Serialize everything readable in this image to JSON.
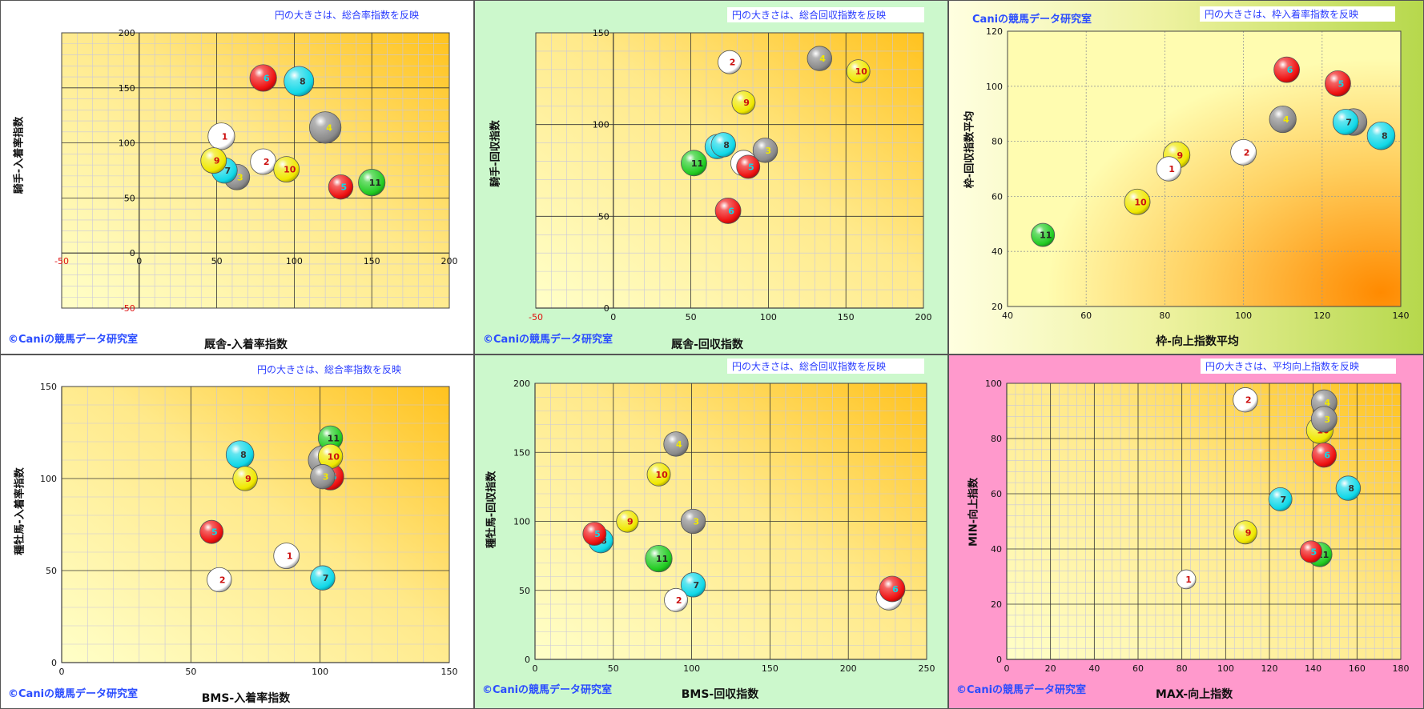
{
  "chart_data": [
    {
      "id": "p1",
      "type": "scatter",
      "note": "円の大きさは、総合率指数を反映",
      "copyright": "©Caniの競馬データ研究室",
      "xlabel": "厩舎-入着率指数",
      "ylabel": "騎手-入着率指数",
      "xlim": [
        -50,
        200
      ],
      "ylim": [
        -50,
        200
      ],
      "xticks": [
        -50,
        0,
        50,
        100,
        150,
        200
      ],
      "yticks": [
        -50,
        0,
        50,
        100,
        150,
        200
      ],
      "grid": true,
      "points": [
        {
          "label": "1",
          "x": 53,
          "y": 106,
          "size": 1.1,
          "color": "#ffffff"
        },
        {
          "label": "2",
          "x": 80,
          "y": 83,
          "size": 1.0,
          "color": "#ffffff"
        },
        {
          "label": "3",
          "x": 63,
          "y": 69,
          "size": 1.0,
          "color": "#8a8a8a"
        },
        {
          "label": "4",
          "x": 120,
          "y": 114,
          "size": 1.6,
          "color": "#8a8a8a"
        },
        {
          "label": "5",
          "x": 130,
          "y": 60,
          "size": 0.9,
          "color": "#ee1010"
        },
        {
          "label": "6",
          "x": 80,
          "y": 159,
          "size": 1.1,
          "color": "#ee1010"
        },
        {
          "label": "7",
          "x": 55,
          "y": 75,
          "size": 1.0,
          "color": "#10d8e8"
        },
        {
          "label": "8",
          "x": 103,
          "y": 156,
          "size": 1.4,
          "color": "#10d8e8"
        },
        {
          "label": "9",
          "x": 48,
          "y": 84,
          "size": 1.0,
          "color": "#f0e800"
        },
        {
          "label": "10",
          "x": 95,
          "y": 76,
          "size": 1.0,
          "color": "#f0e800"
        },
        {
          "label": "11",
          "x": 150,
          "y": 64,
          "size": 1.1,
          "color": "#22cc22"
        }
      ]
    },
    {
      "id": "p2",
      "type": "scatter",
      "note": "円の大きさは、総合回収指数を反映",
      "copyright": "©Caniの競馬データ研究室",
      "xlabel": "厩舎-回収指数",
      "ylabel": "騎手-回収指数",
      "xlim": [
        -50,
        200
      ],
      "ylim": [
        0,
        150
      ],
      "xticks": [
        -50,
        0,
        50,
        100,
        150,
        200
      ],
      "yticks": [
        0,
        50,
        100,
        150
      ],
      "grid": true,
      "points": [
        {
          "label": "2",
          "x": 75,
          "y": 134,
          "size": 0.8,
          "color": "#ffffff"
        },
        {
          "label": "4",
          "x": 133,
          "y": 136,
          "size": 0.9,
          "color": "#8a8a8a"
        },
        {
          "label": "10",
          "x": 158,
          "y": 129,
          "size": 0.8,
          "color": "#f0e800"
        },
        {
          "label": "9",
          "x": 84,
          "y": 112,
          "size": 0.8,
          "color": "#f0e800"
        },
        {
          "label": "7",
          "x": 67,
          "y": 88,
          "size": 0.9,
          "color": "#10d8e8"
        },
        {
          "label": "8",
          "x": 71,
          "y": 89,
          "size": 0.9,
          "color": "#10d8e8"
        },
        {
          "label": "3",
          "x": 98,
          "y": 86,
          "size": 0.9,
          "color": "#8a8a8a"
        },
        {
          "label": "1",
          "x": 84,
          "y": 79,
          "size": 1.0,
          "color": "#ffffff"
        },
        {
          "label": "5",
          "x": 87,
          "y": 77,
          "size": 0.8,
          "color": "#ee1010"
        },
        {
          "label": "11",
          "x": 52,
          "y": 79,
          "size": 1.0,
          "color": "#22cc22"
        },
        {
          "label": "6",
          "x": 74,
          "y": 53,
          "size": 1.0,
          "color": "#ee1010"
        }
      ]
    },
    {
      "id": "p3",
      "type": "scatter",
      "note": "円の大きさは、枠入着率指数を反映",
      "copyright": "Caniの競馬データ研究室",
      "xlabel": "枠-向上指数平均",
      "ylabel": "枠-回収指数平均",
      "xlim": [
        40,
        140
      ],
      "ylim": [
        20,
        120
      ],
      "xticks": [
        40,
        60,
        80,
        100,
        120,
        140
      ],
      "yticks": [
        20,
        40,
        60,
        80,
        100,
        120
      ],
      "grid": false,
      "points": [
        {
          "label": "6",
          "x": 111,
          "y": 106,
          "size": 1.0,
          "color": "#ee1010"
        },
        {
          "label": "5",
          "x": 124,
          "y": 101,
          "size": 1.0,
          "color": "#ee1010"
        },
        {
          "label": "4",
          "x": 110,
          "y": 88,
          "size": 1.1,
          "color": "#8a8a8a"
        },
        {
          "label": "3",
          "x": 128,
          "y": 87,
          "size": 1.1,
          "color": "#8a8a8a"
        },
        {
          "label": "7",
          "x": 126,
          "y": 87,
          "size": 1.0,
          "color": "#10d8e8"
        },
        {
          "label": "8",
          "x": 135,
          "y": 82,
          "size": 1.2,
          "color": "#10d8e8"
        },
        {
          "label": "2",
          "x": 100,
          "y": 76,
          "size": 1.0,
          "color": "#ffffff"
        },
        {
          "label": "1",
          "x": 81,
          "y": 70,
          "size": 0.9,
          "color": "#ffffff"
        },
        {
          "label": "9",
          "x": 83,
          "y": 75,
          "size": 1.1,
          "color": "#f0e800"
        },
        {
          "label": "10",
          "x": 73,
          "y": 58,
          "size": 1.0,
          "color": "#f0e800"
        },
        {
          "label": "11",
          "x": 49,
          "y": 46,
          "size": 0.8,
          "color": "#22cc22"
        }
      ]
    },
    {
      "id": "p4",
      "type": "scatter",
      "note": "円の大きさは、総合率指数を反映",
      "copyright": "©Caniの競馬データ研究室",
      "xlabel": "BMS-入着率指数",
      "ylabel": "種牡馬-入着率指数",
      "xlim": [
        0,
        150
      ],
      "ylim": [
        0,
        150
      ],
      "xticks": [
        0,
        50,
        100,
        150
      ],
      "yticks": [
        0,
        50,
        100,
        150
      ],
      "grid": true,
      "points": [
        {
          "label": "11",
          "x": 104,
          "y": 122,
          "size": 0.9,
          "color": "#22cc22"
        },
        {
          "label": "8",
          "x": 69,
          "y": 113,
          "size": 1.2,
          "color": "#10d8e8"
        },
        {
          "label": "4",
          "x": 101,
          "y": 110,
          "size": 1.3,
          "color": "#8a8a8a"
        },
        {
          "label": "10",
          "x": 104,
          "y": 112,
          "size": 0.9,
          "color": "#f0e800"
        },
        {
          "label": "9",
          "x": 71,
          "y": 100,
          "size": 0.9,
          "color": "#f0e800"
        },
        {
          "label": "3",
          "x": 101,
          "y": 101,
          "size": 0.9,
          "color": "#8a8a8a"
        },
        {
          "label": "6",
          "x": 104,
          "y": 101,
          "size": 1.1,
          "color": "#ee1010"
        },
        {
          "label": "5",
          "x": 58,
          "y": 71,
          "size": 0.8,
          "color": "#ee1010"
        },
        {
          "label": "1",
          "x": 87,
          "y": 58,
          "size": 1.0,
          "color": "#ffffff"
        },
        {
          "label": "2",
          "x": 61,
          "y": 45,
          "size": 0.9,
          "color": "#ffffff"
        },
        {
          "label": "7",
          "x": 101,
          "y": 46,
          "size": 0.9,
          "color": "#10d8e8"
        }
      ]
    },
    {
      "id": "p5",
      "type": "scatter",
      "note": "円の大きさは、総合回収指数を反映",
      "copyright": "©Caniの競馬データ研究室",
      "xlabel": "BMS-回収指数",
      "ylabel": "種牡馬-回収指数",
      "xlim": [
        0,
        250
      ],
      "ylim": [
        0,
        200
      ],
      "xticks": [
        0,
        50,
        100,
        150,
        200,
        250
      ],
      "yticks": [
        0,
        50,
        100,
        150,
        200
      ],
      "grid": true,
      "points": [
        {
          "label": "4",
          "x": 90,
          "y": 156,
          "size": 0.9,
          "color": "#8a8a8a"
        },
        {
          "label": "10",
          "x": 79,
          "y": 134,
          "size": 0.8,
          "color": "#f0e800"
        },
        {
          "label": "9",
          "x": 59,
          "y": 100,
          "size": 0.7,
          "color": "#f0e800"
        },
        {
          "label": "5",
          "x": 38,
          "y": 91,
          "size": 0.8,
          "color": "#ee1010"
        },
        {
          "label": "8",
          "x": 42,
          "y": 86,
          "size": 0.9,
          "color": "#10d8e8"
        },
        {
          "label": "3",
          "x": 101,
          "y": 100,
          "size": 0.9,
          "color": "#8a8a8a"
        },
        {
          "label": "11",
          "x": 79,
          "y": 73,
          "size": 1.1,
          "color": "#22cc22"
        },
        {
          "label": "7",
          "x": 101,
          "y": 54,
          "size": 0.9,
          "color": "#10d8e8"
        },
        {
          "label": "2",
          "x": 90,
          "y": 43,
          "size": 0.8,
          "color": "#ffffff"
        },
        {
          "label": "1",
          "x": 226,
          "y": 45,
          "size": 1.0,
          "color": "#ffffff"
        },
        {
          "label": "6",
          "x": 228,
          "y": 51,
          "size": 1.0,
          "color": "#ee1010"
        }
      ]
    },
    {
      "id": "p6",
      "type": "scatter",
      "note": "円の大きさは、平均向上指数を反映",
      "copyright": "©Caniの競馬データ研究室",
      "xlabel": "MAX-向上指数",
      "ylabel": "MIN-向上指数",
      "xlim": [
        0,
        180
      ],
      "ylim": [
        0,
        100
      ],
      "xticks": [
        0,
        20,
        40,
        60,
        80,
        100,
        120,
        140,
        160,
        180
      ],
      "yticks": [
        0,
        20,
        40,
        60,
        80,
        100
      ],
      "grid": true,
      "points": [
        {
          "label": "2",
          "x": 109,
          "y": 94,
          "size": 0.9,
          "color": "#ffffff"
        },
        {
          "label": "4",
          "x": 145,
          "y": 93,
          "size": 1.0,
          "color": "#8a8a8a"
        },
        {
          "label": "3",
          "x": 145,
          "y": 87,
          "size": 1.0,
          "color": "#8a8a8a"
        },
        {
          "label": "10",
          "x": 143,
          "y": 83,
          "size": 1.1,
          "color": "#f0e800"
        },
        {
          "label": "6",
          "x": 145,
          "y": 74,
          "size": 0.9,
          "color": "#ee1010"
        },
        {
          "label": "8",
          "x": 156,
          "y": 62,
          "size": 0.9,
          "color": "#10d8e8"
        },
        {
          "label": "7",
          "x": 125,
          "y": 58,
          "size": 0.8,
          "color": "#10d8e8"
        },
        {
          "label": "9",
          "x": 109,
          "y": 46,
          "size": 0.8,
          "color": "#f0e800"
        },
        {
          "label": "5",
          "x": 139,
          "y": 39,
          "size": 0.7,
          "color": "#ee1010"
        },
        {
          "label": "11",
          "x": 143,
          "y": 38,
          "size": 0.9,
          "color": "#22cc22"
        },
        {
          "label": "1",
          "x": 82,
          "y": 29,
          "size": 0.5,
          "color": "#ffffff"
        }
      ]
    }
  ]
}
